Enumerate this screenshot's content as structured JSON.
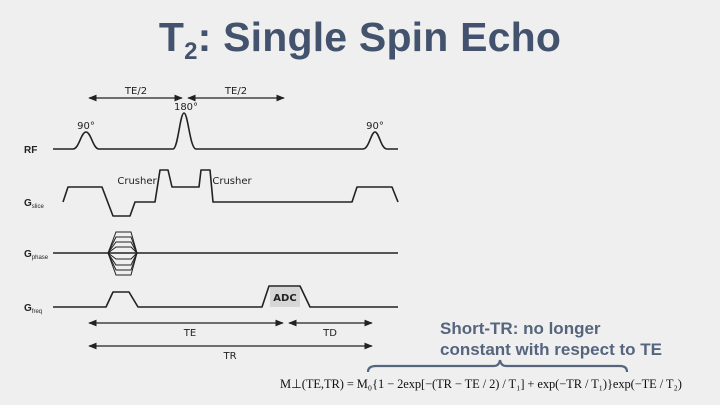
{
  "title": {
    "main": "T",
    "subscript": "2",
    "rest": ": Single Spin Echo"
  },
  "diagram": {
    "axes": {
      "rf": "RF",
      "slice": {
        "main": "G",
        "sub": "slice"
      },
      "phase": {
        "main": "G",
        "sub": "phase"
      },
      "freq": {
        "main": "G",
        "sub": "freq"
      }
    },
    "pulse_labels": {
      "first": "90°",
      "refocus": "180°",
      "next": "90°"
    },
    "te_half_1": "TE/2",
    "te_half_2": "TE/2",
    "crusher_1": "Crusher",
    "crusher_2": "Crusher",
    "adc": "ADC",
    "te": "TE",
    "td": "TD",
    "tr": "TR"
  },
  "note": {
    "line1": "Short-TR: no longer",
    "line2": "constant with respect to TE"
  },
  "equation": "M⊥(TE,TR) = M₀{1 − 2exp[−(TR − TE / 2) / T₁] + exp(−TR / T₁)}exp(−TE / T₂)",
  "colors": {
    "title": "#44536d",
    "note": "#56657e",
    "background": "#efefef"
  }
}
